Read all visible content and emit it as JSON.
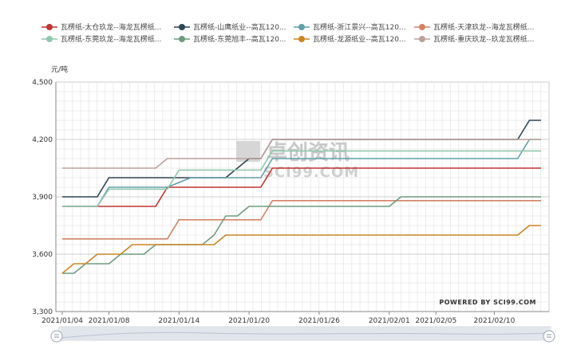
{
  "chart_data": {
    "type": "line",
    "ylabel": "元/吨",
    "ylim": [
      3300,
      4500
    ],
    "yticks": [
      3300,
      3600,
      3900,
      4200,
      4500
    ],
    "ytick_labels": [
      "3,300",
      "3,600",
      "3,900",
      "4,200",
      "4,500"
    ],
    "x_start": "2021/01/04",
    "x_end": "2021/02/14",
    "xtick_labels": [
      "2021/01/04",
      "2021/01/08",
      "2021/01/14",
      "2021/01/20",
      "2021/01/26",
      "2021/02/01",
      "2021/02/05",
      "2021/02/10"
    ],
    "grid": true,
    "legend_position": "top",
    "watermark": "卓创资讯",
    "watermark_sub": "SCI99.COM",
    "credit": "POWERED BY SCI99.COM",
    "series": [
      {
        "name": "瓦楞纸-太仓玖龙--海龙瓦楞纸...",
        "color": "#c23531",
        "points": [
          [
            "2021/01/04",
            3850
          ],
          [
            "2021/01/12",
            3850
          ],
          [
            "2021/01/13",
            3950
          ],
          [
            "2021/01/21",
            3950
          ],
          [
            "2021/01/22",
            4050
          ],
          [
            "2021/02/14",
            4050
          ]
        ]
      },
      {
        "name": "瓦楞纸-山鹰纸业--高瓦120...",
        "color": "#2f4554",
        "points": [
          [
            "2021/01/04",
            3900
          ],
          [
            "2021/01/07",
            3900
          ],
          [
            "2021/01/08",
            4000
          ],
          [
            "2021/01/18",
            4000
          ],
          [
            "2021/01/20",
            4100
          ],
          [
            "2021/01/21",
            4100
          ],
          [
            "2021/01/22",
            4200
          ],
          [
            "2021/02/12",
            4200
          ],
          [
            "2021/02/13",
            4300
          ],
          [
            "2021/02/14",
            4300
          ]
        ]
      },
      {
        "name": "瓦楞纸-浙江景兴--高瓦120...",
        "color": "#61a0a8",
        "points": [
          [
            "2021/01/04",
            3850
          ],
          [
            "2021/01/07",
            3850
          ],
          [
            "2021/01/08",
            3950
          ],
          [
            "2021/01/13",
            3950
          ],
          [
            "2021/01/15",
            4000
          ],
          [
            "2021/01/21",
            4000
          ],
          [
            "2021/01/22",
            4100
          ],
          [
            "2021/02/12",
            4100
          ],
          [
            "2021/02/13",
            4200
          ],
          [
            "2021/02/14",
            4200
          ]
        ]
      },
      {
        "name": "瓦楞纸-天津玖龙--海龙瓦楞纸...",
        "color": "#d48265",
        "points": [
          [
            "2021/01/04",
            3680
          ],
          [
            "2021/01/13",
            3680
          ],
          [
            "2021/01/14",
            3780
          ],
          [
            "2021/01/21",
            3780
          ],
          [
            "2021/01/22",
            3880
          ],
          [
            "2021/02/14",
            3880
          ]
        ]
      },
      {
        "name": "瓦楞纸-东莞玖龙--海龙瓦楞纸...",
        "color": "#91c7ae",
        "points": [
          [
            "2021/01/04",
            3850
          ],
          [
            "2021/01/07",
            3850
          ],
          [
            "2021/01/08",
            3940
          ],
          [
            "2021/01/13",
            3940
          ],
          [
            "2021/01/14",
            4040
          ],
          [
            "2021/01/21",
            4040
          ],
          [
            "2021/01/22",
            4140
          ],
          [
            "2021/02/14",
            4140
          ]
        ]
      },
      {
        "name": "瓦楞纸-东莞旭丰--高瓦120...",
        "color": "#6e9c7f",
        "points": [
          [
            "2021/01/04",
            3500
          ],
          [
            "2021/01/05",
            3500
          ],
          [
            "2021/01/06",
            3550
          ],
          [
            "2021/01/08",
            3550
          ],
          [
            "2021/01/09",
            3600
          ],
          [
            "2021/01/11",
            3600
          ],
          [
            "2021/01/12",
            3650
          ],
          [
            "2021/01/16",
            3650
          ],
          [
            "2021/01/17",
            3700
          ],
          [
            "2021/01/18",
            3800
          ],
          [
            "2021/01/19",
            3800
          ],
          [
            "2021/01/20",
            3850
          ],
          [
            "2021/02/01",
            3850
          ],
          [
            "2021/02/02",
            3900
          ],
          [
            "2021/02/14",
            3900
          ]
        ]
      },
      {
        "name": "瓦楞纸-龙源纸业--高瓦120...",
        "color": "#ca8622",
        "points": [
          [
            "2021/01/04",
            3500
          ],
          [
            "2021/01/05",
            3550
          ],
          [
            "2021/01/06",
            3550
          ],
          [
            "2021/01/07",
            3600
          ],
          [
            "2021/01/09",
            3600
          ],
          [
            "2021/01/10",
            3650
          ],
          [
            "2021/01/17",
            3650
          ],
          [
            "2021/01/18",
            3700
          ],
          [
            "2021/02/12",
            3700
          ],
          [
            "2021/02/13",
            3750
          ],
          [
            "2021/02/14",
            3750
          ]
        ]
      },
      {
        "name": "瓦楞纸-重庆玖龙--玖龙瓦楞纸...",
        "color": "#bda29a",
        "points": [
          [
            "2021/01/04",
            4050
          ],
          [
            "2021/01/12",
            4050
          ],
          [
            "2021/01/13",
            4100
          ],
          [
            "2021/01/21",
            4100
          ],
          [
            "2021/01/22",
            4200
          ],
          [
            "2021/02/14",
            4200
          ]
        ]
      }
    ]
  }
}
